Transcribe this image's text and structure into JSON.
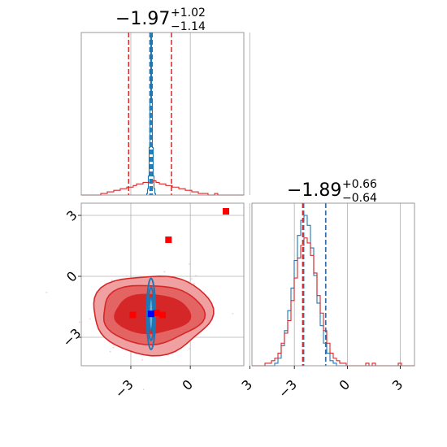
{
  "chart_data": {
    "type": "corner",
    "parameters": 2,
    "titles": [
      {
        "value": "−1.97",
        "plus": "+1.02",
        "minus": "−1.14"
      },
      {
        "value": "−1.89",
        "plus": "+0.66",
        "minus": "−0.64"
      }
    ],
    "x_ticks": [
      "−3",
      "0",
      "3"
    ],
    "y_ticks": [
      "3",
      "0",
      "−3"
    ],
    "tick_values": [
      -3,
      0,
      3
    ],
    "xlim": [
      -5.5,
      2.7
    ],
    "ylim_2d": [
      -4.4,
      3.6
    ],
    "xlim_param2": [
      -5.4,
      3.8
    ],
    "grid": true,
    "colors": {
      "red": "#d62728",
      "blue": "#1f77b4",
      "fill_light": "#f0a0a0",
      "fill_mid": "#e46464",
      "fill_dark": "#d62728"
    },
    "series": [
      {
        "color": "red",
        "param1_hist": {
          "edges_range": [
            -5.5,
            2.7
          ],
          "counts": [
            0,
            0,
            0,
            0,
            0,
            0,
            1,
            1,
            2,
            2,
            3,
            3,
            4,
            4,
            5,
            5,
            6,
            7,
            7,
            8,
            8,
            8,
            9,
            8,
            7,
            7,
            6,
            6,
            5,
            5,
            4,
            4,
            3,
            3,
            2,
            2,
            1,
            1,
            1,
            0,
            0,
            1,
            0,
            0,
            0,
            0,
            0,
            0,
            0,
            0
          ]
        },
        "param1_median": -1.97,
        "param1_q": [
          -3.11,
          -0.95
        ],
        "param2_median": -1.89,
        "param2_q": [
          -2.53,
          -1.23
        ],
        "param2_hist": {
          "edges_range": [
            -5.4,
            3.8
          ],
          "counts": [
            0,
            0,
            0,
            0,
            1,
            1,
            2,
            3,
            5,
            9,
            13,
            18,
            26,
            35,
            43,
            48,
            51,
            49,
            44,
            37,
            28,
            21,
            14,
            9,
            5,
            3,
            2,
            1,
            1,
            0,
            0,
            0,
            0,
            0,
            0,
            1,
            0,
            1,
            0,
            0,
            0,
            0,
            0,
            0,
            0,
            1,
            0,
            0,
            0,
            0
          ]
        },
        "markers": [
          [
            1.8,
            3.2
          ],
          [
            -1.1,
            1.8
          ],
          [
            -2.9,
            -1.9
          ],
          [
            -1.7,
            -1.8
          ],
          [
            -1.4,
            -1.9
          ]
        ]
      },
      {
        "color": "blue",
        "param1_hist": {
          "edges_range": [
            -2.2,
            -1.75
          ],
          "counts": [
            1,
            4,
            12,
            30,
            60,
            100,
            60,
            30,
            12,
            4,
            1
          ]
        },
        "param1_median": -1.98,
        "param1_q": [
          -2.04,
          -1.92
        ],
        "param2_median": -1.9,
        "param2_q": [
          -2.47,
          -1.22
        ],
        "param2_hist": {
          "edges_range": [
            -5.4,
            3.8
          ],
          "counts": [
            0,
            0,
            0,
            0,
            0,
            0,
            0,
            1,
            3,
            8,
            14,
            22,
            31,
            42,
            52,
            58,
            60,
            56,
            47,
            36,
            25,
            16,
            9,
            5,
            2,
            1,
            0,
            0,
            0,
            0,
            0,
            0,
            0,
            0,
            0,
            0,
            0,
            0,
            0,
            0,
            0,
            0,
            0,
            0,
            0,
            0,
            0,
            0,
            0,
            0
          ]
        },
        "markers": [
          [
            -1.98,
            -1.85
          ]
        ]
      }
    ]
  }
}
